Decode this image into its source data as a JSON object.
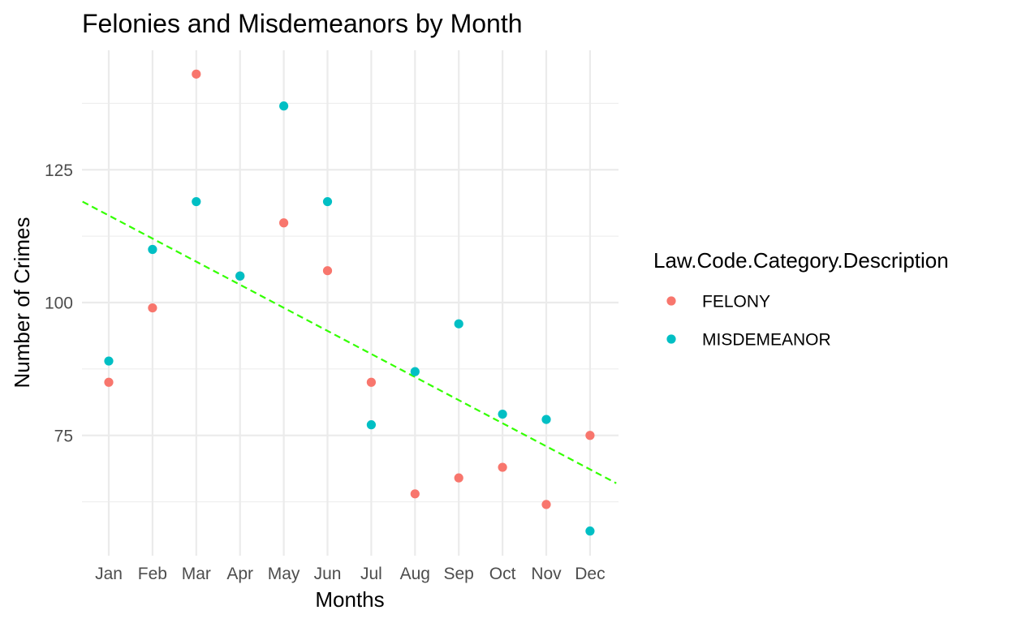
{
  "chart_data": {
    "type": "scatter",
    "title": "Felonies and Misdemeanors by Month",
    "xlabel": "Months",
    "ylabel": "Number of Crimes",
    "categories": [
      "Jan",
      "Feb",
      "Mar",
      "Apr",
      "May",
      "Jun",
      "Jul",
      "Aug",
      "Sep",
      "Oct",
      "Nov",
      "Dec"
    ],
    "ylim": [
      52,
      146
    ],
    "yticks": [
      75,
      100,
      125
    ],
    "grid": true,
    "legend": {
      "title": "Law.Code.Category.Description",
      "position": "right"
    },
    "series": [
      {
        "name": "FELONY",
        "color": "#F8766D",
        "values": [
          85,
          99,
          143,
          105,
          115,
          106,
          85,
          64,
          67,
          69,
          62,
          75
        ]
      },
      {
        "name": "MISDEMEANOR",
        "color": "#00BFC4",
        "values": [
          89,
          110,
          119,
          105,
          137,
          119,
          77,
          87,
          96,
          79,
          78,
          57
        ]
      }
    ],
    "trend_line": {
      "style": "dashed",
      "color": "#33FF00",
      "y_at_x_0_4": 119,
      "y_at_x_12_6": 66
    }
  }
}
